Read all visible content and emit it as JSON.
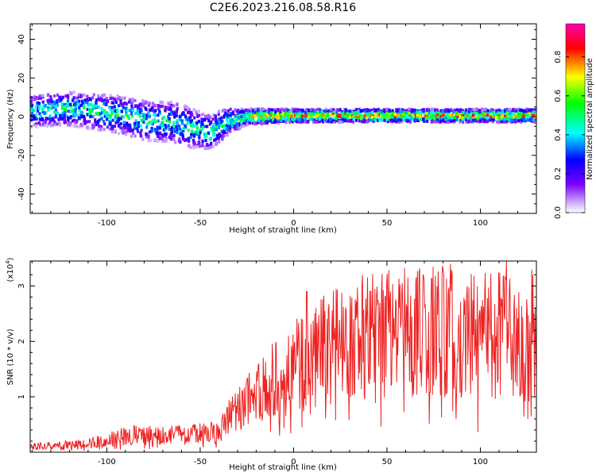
{
  "title": "C2E6.2023.216.08.58.R16",
  "chart_data": [
    {
      "type": "heatmap",
      "xlabel": "Height of straight line (km)",
      "ylabel": "Frequency (Hz)",
      "xlim": [
        -141,
        130
      ],
      "ylim": [
        -50,
        48
      ],
      "xticks": [
        -100,
        -50,
        0,
        50,
        100
      ],
      "yticks": [
        -40,
        -20,
        0,
        20,
        40
      ],
      "grid": false,
      "colorbar": {
        "label": "Normalized spectral amplitude",
        "range": [
          0.0,
          0.97
        ],
        "ticks": [
          "0.0",
          "0.2",
          "0.4",
          "0.6",
          "0.8"
        ],
        "colors": [
          "#ffffff",
          "#7b00ff",
          "#0000ff",
          "#00ffff",
          "#00ff00",
          "#ffff00",
          "#ff0000",
          "#ff00aa"
        ]
      },
      "band_center": [
        [
          -141,
          3
        ],
        [
          -120,
          4
        ],
        [
          -100,
          2
        ],
        [
          -80,
          -2
        ],
        [
          -65,
          -3
        ],
        [
          -55,
          -6
        ],
        [
          -45,
          -8
        ],
        [
          -35,
          -2
        ],
        [
          -25,
          0
        ],
        [
          0,
          0.5
        ],
        [
          130,
          0.5
        ]
      ],
      "band_halfwidth": [
        [
          -141,
          6
        ],
        [
          -100,
          7
        ],
        [
          -60,
          8
        ],
        [
          -40,
          6
        ],
        [
          -25,
          3
        ],
        [
          0,
          2.5
        ],
        [
          130,
          2.5
        ]
      ],
      "peak_amplitude": [
        [
          -141,
          0.55
        ],
        [
          -100,
          0.6
        ],
        [
          -60,
          0.55
        ],
        [
          -30,
          0.65
        ],
        [
          -20,
          0.9
        ],
        [
          0,
          0.95
        ],
        [
          130,
          0.95
        ]
      ]
    },
    {
      "type": "line",
      "xlabel": "Height of straight line (km)",
      "ylabel": "SNR (10 * v/v)",
      "ylabel_scale": "(x10",
      "ylabel_scale_exp": "4",
      "ylabel_scale_close": ")",
      "xlim": [
        -141,
        130
      ],
      "ylim": [
        0,
        3.45
      ],
      "xticks": [
        -100,
        -50,
        0,
        50,
        100
      ],
      "yticks": [
        1,
        2,
        3
      ],
      "grid": false,
      "series": [
        {
          "color": "#ee2222",
          "envelope": [
            {
              "x": -141,
              "y": 0.1
            },
            {
              "x": -110,
              "y": 0.15
            },
            {
              "x": -90,
              "y": 0.3
            },
            {
              "x": -60,
              "y": 0.3
            },
            {
              "x": -40,
              "y": 0.35
            },
            {
              "x": -30,
              "y": 0.8
            },
            {
              "x": -20,
              "y": 1.0
            },
            {
              "x": -10,
              "y": 1.3
            },
            {
              "x": 0,
              "y": 1.55
            },
            {
              "x": 10,
              "y": 1.7
            },
            {
              "x": 20,
              "y": 1.9
            },
            {
              "x": 40,
              "y": 2.1
            },
            {
              "x": 60,
              "y": 2.15
            },
            {
              "x": 80,
              "y": 2.2
            },
            {
              "x": 100,
              "y": 2.1
            },
            {
              "x": 130,
              "y": 2.2
            }
          ],
          "peaks": [
            {
              "x": 7,
              "y": 2.9
            },
            {
              "x": 84,
              "y": 3.4
            },
            {
              "x": 114,
              "y": 3.45
            },
            {
              "x": 128,
              "y": 3.2
            }
          ]
        }
      ]
    }
  ]
}
